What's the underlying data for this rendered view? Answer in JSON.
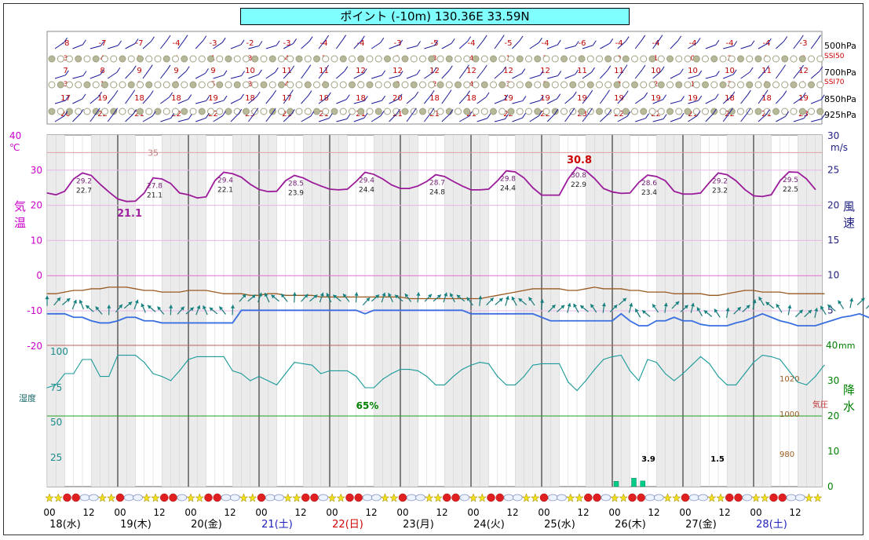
{
  "header": {
    "title": "ポイント (-10m) 130.36E 33.59N"
  },
  "upper_panel": {
    "levels": [
      "500hPa",
      "700hPa",
      "850hPa",
      "925hPa"
    ],
    "ssi_labels": [
      "SSI50",
      "SSI70"
    ],
    "temp_500": [
      "-8",
      "-7",
      "-7",
      "-4",
      "-3",
      "-2",
      "-3",
      "-4",
      "-4",
      "-3",
      "-5",
      "-4",
      "-5",
      "-4",
      "-6",
      "-4",
      "-4",
      "-4",
      "-4",
      "-4",
      "-3"
    ],
    "temp_700": [
      "7",
      "8",
      "9",
      "9",
      "9",
      "10",
      "11",
      "11",
      "12",
      "12",
      "12",
      "12",
      "12",
      "12",
      "11",
      "11",
      "10",
      "10",
      "10",
      "11",
      "12"
    ],
    "temp_850": [
      "17",
      "19",
      "18",
      "18",
      "19",
      "18",
      "17",
      "18",
      "18",
      "20",
      "18",
      "18",
      "19",
      "19",
      "19",
      "19",
      "19",
      "19",
      "18",
      "18",
      "19"
    ],
    "temp_925": [
      "20",
      "22",
      "21",
      "22",
      "22",
      "23",
      "21",
      "21",
      "21",
      "21",
      "21",
      "21",
      "22",
      "22",
      "23",
      "22",
      "22",
      "21",
      "22",
      "21",
      "23"
    ],
    "ssi50_values": [
      "3",
      "4",
      "1",
      "4",
      "1",
      "3",
      "4",
      "1",
      "4",
      "1",
      "3",
      "4",
      "1",
      "2",
      "3",
      "0",
      "1",
      "0",
      "2",
      "2",
      "0"
    ],
    "ssi70_values": [
      "3",
      "1",
      "3",
      "3",
      "5",
      "3",
      "4",
      "4",
      "2",
      "2",
      "2",
      "4",
      "3",
      "2",
      "3",
      "2",
      "2",
      "1",
      "2",
      "3",
      "1"
    ]
  },
  "axes": {
    "left_title": "気温",
    "left_unit": "℃",
    "left_ticks": [
      "40",
      "30",
      "20",
      "10",
      "0",
      "-10",
      "-20"
    ],
    "right_title": "風速",
    "right_unit": "m/s",
    "right_ticks": [
      "30",
      "25",
      "20",
      "15",
      "10",
      "5"
    ],
    "rain_title": "降水",
    "rain_unit": "mm",
    "rain_ticks": [
      "40",
      "30",
      "20",
      "10",
      "0"
    ],
    "humidity_title": "湿度",
    "humidity_ticks": [
      "100",
      "75",
      "50",
      "25"
    ],
    "pressure_title": "気圧",
    "pressure_ticks": [
      "1020",
      "1000",
      "980"
    ],
    "temp_ref_label": "35"
  },
  "chart_data": {
    "type": "line",
    "title": "ポイント (-10m) 130.36E 33.59N",
    "x_hours": "3-hourly from 18日(水) 00時 to 28日(土) 15時",
    "days": [
      {
        "label": "18(水)",
        "color": "#000000"
      },
      {
        "label": "19(木)",
        "color": "#000000"
      },
      {
        "label": "20(金)",
        "color": "#000000"
      },
      {
        "label": "21(土)",
        "color": "#2020c0"
      },
      {
        "label": "22(日)",
        "color": "#d00000"
      },
      {
        "label": "23(月)",
        "color": "#000000"
      },
      {
        "label": "24(火)",
        "color": "#000000"
      },
      {
        "label": "25(水)",
        "color": "#000000"
      },
      {
        "label": "26(木)",
        "color": "#000000"
      },
      {
        "label": "27(金)",
        "color": "#000000"
      },
      {
        "label": "28(土)",
        "color": "#2020c0"
      }
    ],
    "hour_ticks": [
      "00",
      "12"
    ],
    "series": [
      {
        "name": "気温",
        "unit": "℃",
        "color": "#9b1b9b",
        "values": [
          23.5,
          23.0,
          24.0,
          27.5,
          29.2,
          28.5,
          26.0,
          23.8,
          21.8,
          21.1,
          21.2,
          23.5,
          27.8,
          27.5,
          26.2,
          23.5,
          23.0,
          22.1,
          22.4,
          27.0,
          29.4,
          29.0,
          28.0,
          26.0,
          24.5,
          23.9,
          24.0,
          27.0,
          28.5,
          27.8,
          26.5,
          25.5,
          24.6,
          24.4,
          24.6,
          26.8,
          29.4,
          28.8,
          27.5,
          25.8,
          24.8,
          24.8,
          25.5,
          26.8,
          28.7,
          28.2,
          26.8,
          25.5,
          24.4,
          24.4,
          24.6,
          27.0,
          29.8,
          29.5,
          27.8,
          25.0,
          22.9,
          22.9,
          22.9,
          27.5,
          30.8,
          29.8,
          27.6,
          24.8,
          23.8,
          23.4,
          23.5,
          26.5,
          28.6,
          28.2,
          27.0,
          24.0,
          23.2,
          23.2,
          23.5,
          26.5,
          29.2,
          28.7,
          27.0,
          24.5,
          22.7,
          22.5,
          23.0,
          27.0,
          29.5,
          29.4,
          27.5,
          24.5
        ],
        "max_labels": [
          "29.2",
          "27.8",
          "29.4",
          "28.5",
          "29.4",
          "28.7",
          "29.8",
          "30.8",
          "28.6",
          "29.2",
          "29.5"
        ],
        "min_labels": [
          "22.7",
          "21.1",
          "22.1",
          "23.9",
          "24.4",
          "24.8",
          "24.4",
          "22.9",
          "23.4",
          "23.2",
          "22.5"
        ],
        "extreme_high": "30.8",
        "extreme_low": "21.1"
      },
      {
        "name": "風速",
        "unit": "m/s",
        "color": "#3a6fe0",
        "values": [
          4.5,
          4.5,
          4.5,
          4.0,
          4.0,
          3.5,
          3.2,
          3.2,
          3.5,
          4.0,
          4.0,
          3.5,
          3.5,
          3.2,
          3.2,
          3.2,
          3.2,
          3.2,
          3.2,
          3.2,
          3.2,
          3.2,
          5.0,
          5.0,
          5.0,
          5.0,
          5.0,
          5.0,
          5.0,
          5.0,
          5.0,
          5.0,
          5.0,
          5.0,
          5.0,
          5.0,
          4.5,
          5.0,
          5.0,
          5.0,
          5.0,
          5.0,
          5.0,
          5.0,
          5.0,
          5.0,
          5.0,
          5.0,
          4.5,
          4.5,
          4.5,
          4.5,
          4.5,
          4.5,
          4.5,
          4.5,
          4.0,
          3.5,
          3.5,
          3.5,
          3.5,
          3.5,
          3.5,
          3.5,
          3.5,
          4.5,
          3.5,
          2.8,
          2.8,
          3.5,
          3.5,
          4.0,
          3.5,
          3.5,
          3.0,
          2.8,
          2.8,
          2.8,
          3.2,
          3.5,
          4.0,
          4.5,
          4.0,
          3.5,
          3.2,
          2.8,
          2.8,
          2.8,
          3.2,
          3.6,
          4.0,
          4.2,
          4.5,
          4.0,
          3.5,
          3.2
        ]
      },
      {
        "name": "湿度",
        "unit": "%",
        "color": "#1a9a9a",
        "values": [
          70,
          72,
          80,
          80,
          90,
          90,
          78,
          78,
          93,
          93,
          93,
          88,
          80,
          78,
          75,
          82,
          90,
          92,
          92,
          92,
          92,
          82,
          80,
          75,
          78,
          75,
          72,
          80,
          88,
          87,
          86,
          80,
          82,
          82,
          82,
          78,
          70,
          70,
          76,
          80,
          83,
          83,
          82,
          78,
          72,
          72,
          78,
          83,
          86,
          88,
          87,
          78,
          72,
          72,
          78,
          86,
          87,
          87,
          87,
          74,
          68,
          75,
          83,
          90,
          92,
          93,
          82,
          75,
          90,
          88,
          80,
          75,
          80,
          86,
          92,
          87,
          78,
          72,
          72,
          80,
          88,
          93,
          92,
          90,
          82,
          74,
          72,
          78,
          86
        ]
      },
      {
        "name": "気圧",
        "unit": "hPa",
        "color": "#9a5a20",
        "values": [
          1011,
          1011,
          1012,
          1013,
          1013,
          1014,
          1014,
          1015,
          1015,
          1015,
          1014,
          1013,
          1013,
          1012,
          1012,
          1012,
          1013,
          1013,
          1013,
          1012,
          1011,
          1011,
          1011,
          1010,
          1010,
          1011,
          1011,
          1010,
          1010,
          1010,
          1010,
          1009,
          1009,
          1009,
          1009,
          1009,
          1009,
          1009,
          1009,
          1009,
          1009,
          1008,
          1008,
          1008,
          1008,
          1008,
          1008,
          1008,
          1008,
          1008,
          1009,
          1010,
          1011,
          1012,
          1013,
          1014,
          1014,
          1014,
          1014,
          1013,
          1013,
          1014,
          1015,
          1014,
          1014,
          1014,
          1013,
          1013,
          1012,
          1012,
          1012,
          1011,
          1011,
          1011,
          1011,
          1010,
          1010,
          1011,
          1012,
          1013,
          1013,
          1012,
          1012,
          1012,
          1011,
          1011,
          1011,
          1011,
          1011
        ]
      },
      {
        "name": "降水",
        "unit": "mm",
        "color": "#00cc88",
        "bars": [
          {
            "idx": 64,
            "value": 1.5
          },
          {
            "idx": 66,
            "value": 2.4
          },
          {
            "idx": 67,
            "value": 1.6
          }
        ],
        "totals": [
          {
            "day": "26(木)",
            "label": "3.9"
          },
          {
            "day": "27(金)",
            "label": "1.5"
          }
        ]
      }
    ],
    "humidity_min_label": "65%",
    "left_ylim": [
      -30,
      40
    ],
    "right_ylim": [
      0,
      30
    ],
    "grid": true
  }
}
